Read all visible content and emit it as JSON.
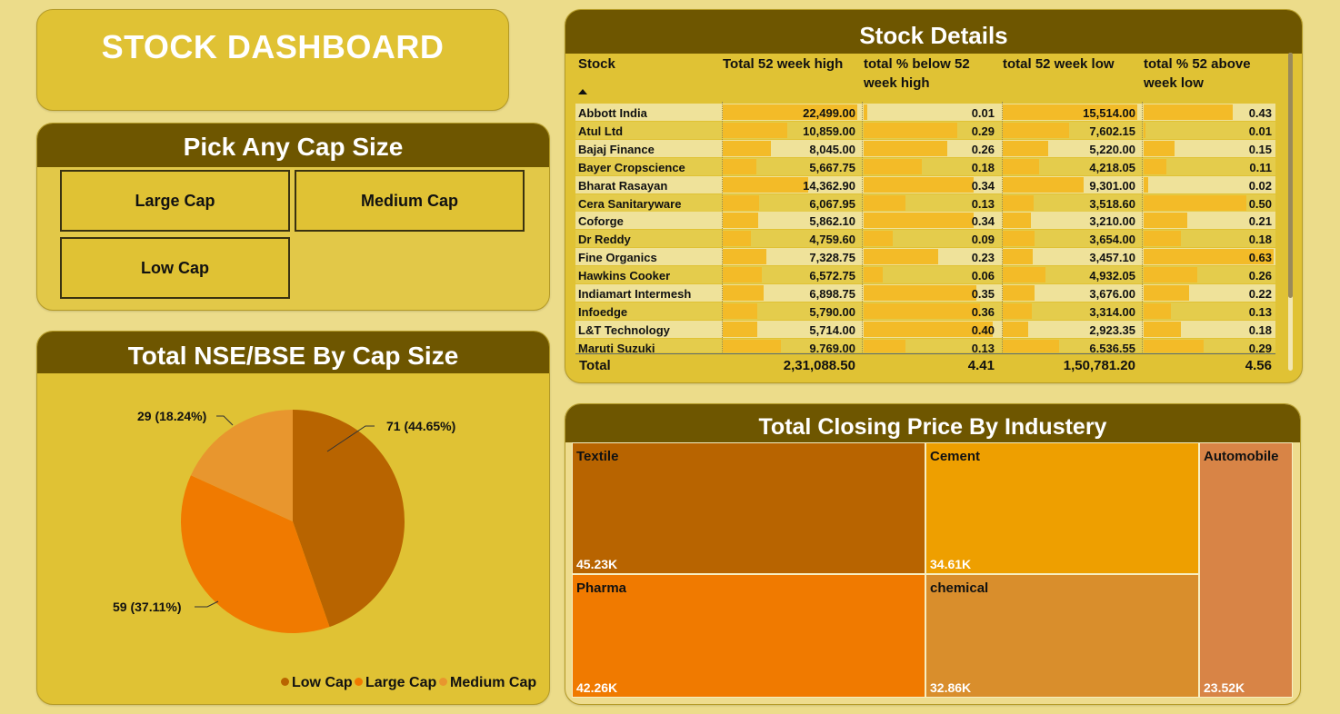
{
  "title": "STOCK DASHBOARD",
  "slicer": {
    "header": "Pick Any Cap Size",
    "options": [
      "Large Cap",
      "Medium Cap",
      "Low Cap"
    ]
  },
  "pie": {
    "header": "Total NSE/BSE By Cap Size",
    "labels": [
      "71 (44.65%)",
      "59 (37.11%)",
      "29 (18.24%)"
    ],
    "legend": [
      "Low Cap",
      "Large Cap",
      "Medium Cap"
    ],
    "colors": {
      "low": "#b86400",
      "large": "#f07a00",
      "medium": "#e8962e"
    }
  },
  "stock": {
    "header": "Stock Details",
    "columns": [
      "Stock",
      "Total 52 week high",
      "total % below 52 week high",
      "total 52 week low",
      "total % 52 above week low"
    ],
    "sort_icon": "sort-ascending-icon",
    "rows": [
      [
        "Abbott India",
        "22,499.00",
        "0.01",
        "15,514.00",
        "0.43"
      ],
      [
        "Atul Ltd",
        "10,859.00",
        "0.29",
        "7,602.15",
        "0.01"
      ],
      [
        "Bajaj Finance",
        "8,045.00",
        "0.26",
        "5,220.00",
        "0.15"
      ],
      [
        "Bayer Cropscience",
        "5,667.75",
        "0.18",
        "4,218.05",
        "0.11"
      ],
      [
        "Bharat Rasayan",
        "14,362.90",
        "0.34",
        "9,301.00",
        "0.02"
      ],
      [
        "Cera Sanitaryware",
        "6,067.95",
        "0.13",
        "3,518.60",
        "0.50"
      ],
      [
        "Coforge",
        "5,862.10",
        "0.34",
        "3,210.00",
        "0.21"
      ],
      [
        "Dr Reddy",
        "4,759.60",
        "0.09",
        "3,654.00",
        "0.18"
      ],
      [
        "Fine Organics",
        "7,328.75",
        "0.23",
        "3,457.10",
        "0.63"
      ],
      [
        "Hawkins Cooker",
        "6,572.75",
        "0.06",
        "4,932.05",
        "0.26"
      ],
      [
        "Indiamart Intermesh",
        "6,898.75",
        "0.35",
        "3,676.00",
        "0.22"
      ],
      [
        "Infoedge",
        "5,790.00",
        "0.36",
        "3,314.00",
        "0.13"
      ],
      [
        "L&T Technology",
        "5,714.00",
        "0.40",
        "2,923.35",
        "0.18"
      ],
      [
        "Maruti Suzuki",
        "9,769.00",
        "0.13",
        "6,536.55",
        "0.29"
      ]
    ],
    "total": [
      "Total",
      "2,31,088.50",
      "4.41",
      "1,50,781.20",
      "4.56"
    ]
  },
  "tree": {
    "header": "Total Closing Price By Industery",
    "tiles": [
      {
        "label": "Textile",
        "value": "45.23K",
        "color": "#b86400"
      },
      {
        "label": "Pharma",
        "value": "42.26K",
        "color": "#f07a00"
      },
      {
        "label": "Cement",
        "value": "34.61K",
        "color": "#ee9f00"
      },
      {
        "label": "chemical",
        "value": "32.86K",
        "color": "#d98e2c"
      },
      {
        "label": "Automobile",
        "value": "23.52K",
        "color": "#d88446"
      }
    ]
  },
  "chart_data": [
    {
      "type": "pie",
      "title": "Total NSE/BSE By Cap Size",
      "categories": [
        "Low Cap",
        "Large Cap",
        "Medium Cap"
      ],
      "values": [
        71,
        59,
        29
      ],
      "percentages": [
        44.65,
        37.11,
        18.24
      ],
      "legend": "bottom-right"
    },
    {
      "type": "treemap",
      "title": "Total Closing Price By Industery",
      "categories": [
        "Textile",
        "Pharma",
        "Cement",
        "chemical",
        "Automobile"
      ],
      "values": [
        45230,
        42260,
        34610,
        32860,
        23520
      ]
    }
  ]
}
